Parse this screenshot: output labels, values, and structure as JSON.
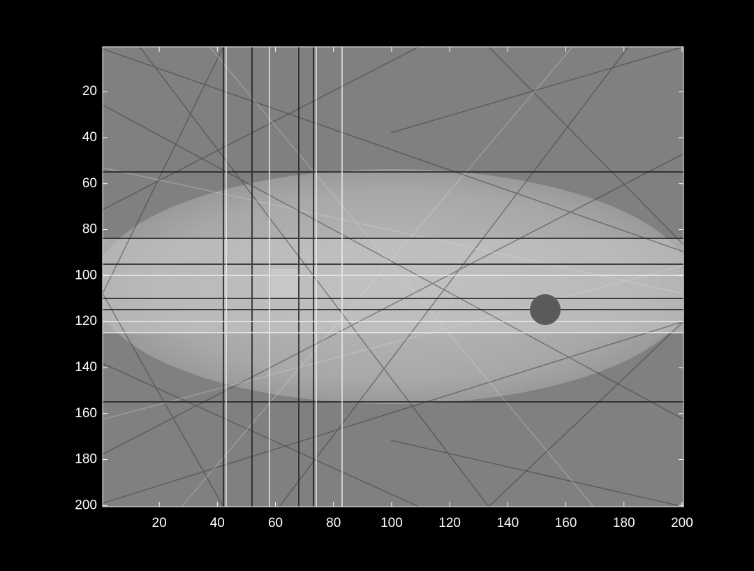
{
  "chart_data": {
    "type": "image",
    "xlim": [
      0.5,
      200.5
    ],
    "ylim": [
      0.5,
      200.5
    ],
    "ydir": "reverse",
    "xticks": [
      20,
      40,
      60,
      80,
      100,
      120,
      140,
      160,
      180,
      200
    ],
    "yticks": [
      20,
      40,
      60,
      80,
      100,
      120,
      140,
      160,
      180,
      200
    ]
  }
}
